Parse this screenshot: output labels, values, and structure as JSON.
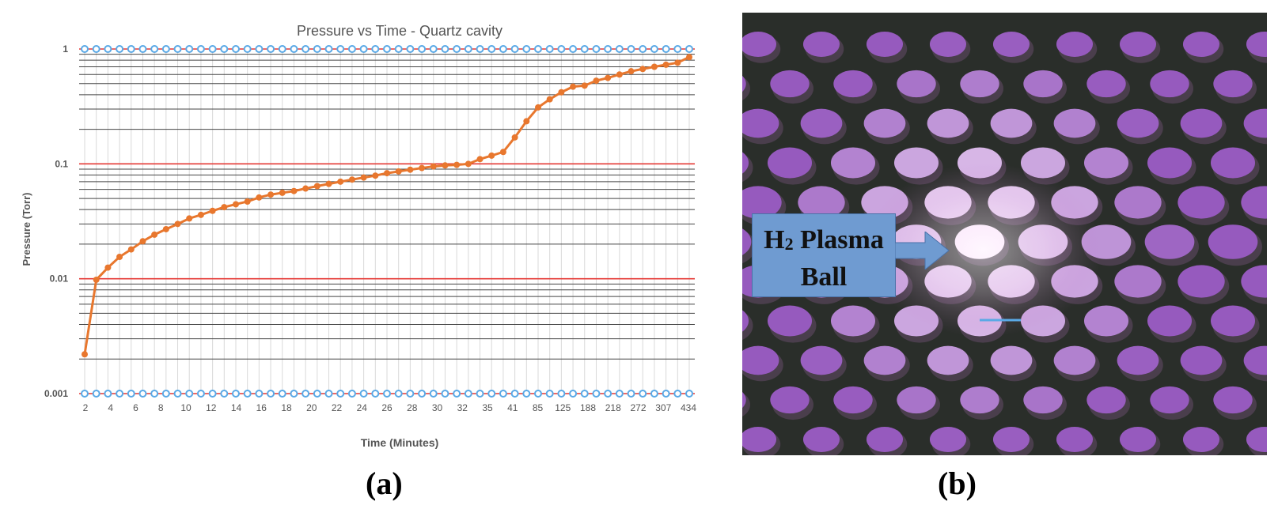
{
  "chart_data": {
    "type": "line",
    "title": "Pressure vs Time - Quartz cavity",
    "xlabel": "Time (Minutes)",
    "ylabel": "Pressure (Torr)",
    "yscale": "log",
    "ylim": [
      0.001,
      1
    ],
    "y_tick_labels": [
      "1",
      "0.1",
      "0.01",
      "0.001"
    ],
    "y_tick_values": [
      1,
      0.1,
      0.01,
      0.001
    ],
    "x_tick_labels": [
      "2",
      "4",
      "6",
      "8",
      "10",
      "12",
      "14",
      "16",
      "18",
      "20",
      "22",
      "24",
      "26",
      "28",
      "30",
      "32",
      "35",
      "41",
      "85",
      "125",
      "188",
      "218",
      "272",
      "307",
      "434"
    ],
    "series": [
      {
        "name": "Pressure",
        "color": "#e8772e",
        "values": [
          0.0022,
          0.0098,
          0.0125,
          0.0155,
          0.018,
          0.0212,
          0.0242,
          0.027,
          0.03,
          0.0335,
          0.036,
          0.039,
          0.042,
          0.0445,
          0.047,
          0.051,
          0.054,
          0.056,
          0.058,
          0.061,
          0.064,
          0.067,
          0.07,
          0.073,
          0.076,
          0.079,
          0.083,
          0.086,
          0.089,
          0.092,
          0.095,
          0.097,
          0.098,
          0.1,
          0.11,
          0.118,
          0.127,
          0.17,
          0.235,
          0.31,
          0.365,
          0.42,
          0.47,
          0.48,
          0.53,
          0.56,
          0.6,
          0.64,
          0.67,
          0.7,
          0.73,
          0.76,
          0.85
        ]
      }
    ],
    "reference_lines": [
      {
        "value": 1,
        "color": "#e53935"
      },
      {
        "value": 0.1,
        "color": "#e53935"
      },
      {
        "value": 0.01,
        "color": "#e53935"
      },
      {
        "value": 0.001,
        "color": "#e53935"
      }
    ],
    "grid": true
  },
  "panel_b": {
    "callout_line1": "H",
    "callout_sub": "2",
    "callout_line1_rest": " Plasma",
    "callout_line2": "Ball"
  },
  "captions": {
    "a": "(a)",
    "b": "(b)"
  },
  "colors": {
    "line": "#e8772e",
    "reference": "#e53935",
    "border_marker": "#5aa9e6",
    "callout": "#6f9bd1"
  }
}
